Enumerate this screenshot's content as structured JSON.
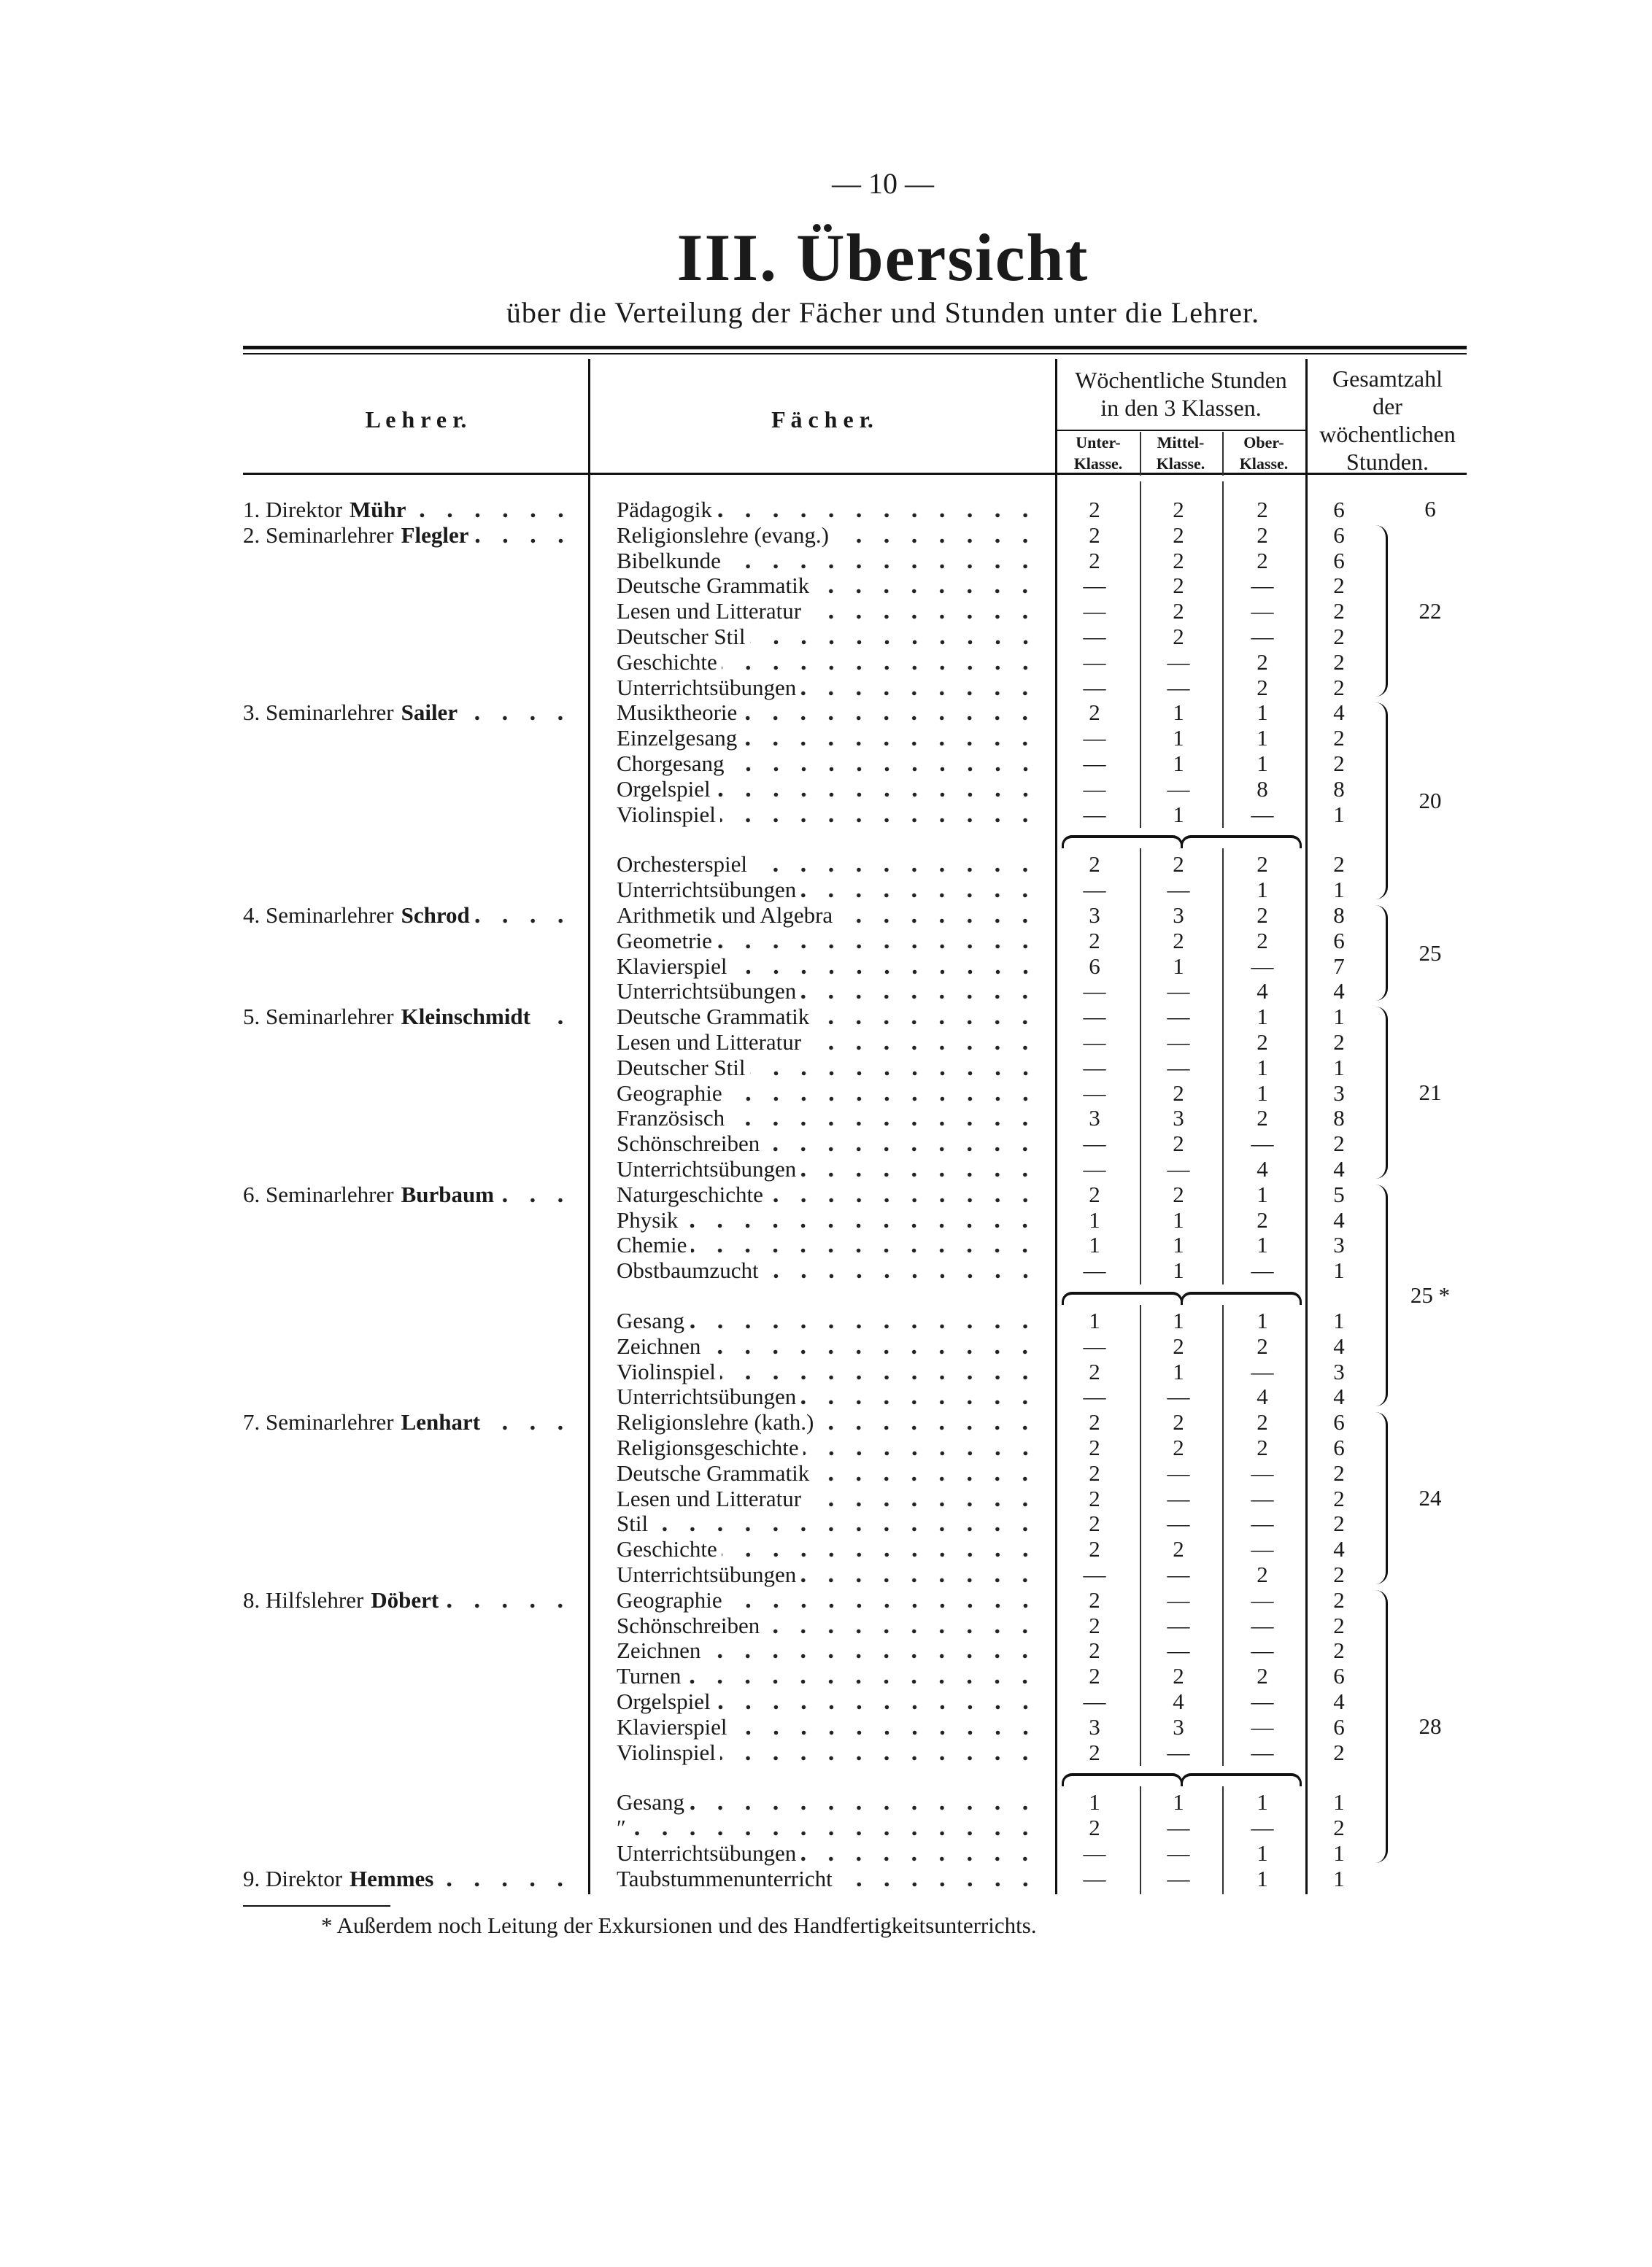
{
  "page_number": "— 10 —",
  "title": "III. Übersicht",
  "subtitle": "über die Verteilung der Fächer und Stunden unter die Lehrer.",
  "headers": {
    "teacher": "L e h r e r.",
    "subject": "F ä c h e r.",
    "weekly_line1": "Wöchentliche Stunden",
    "weekly_line2": "in den 3 Klassen.",
    "class_lower": [
      "Unter-",
      "Klasse."
    ],
    "class_middle": [
      "Mittel-",
      "Klasse."
    ],
    "class_upper": [
      "Ober-",
      "Klasse."
    ],
    "total_lines": [
      "Gesamtzahl",
      "der",
      "wöchentlichen",
      "Stunden."
    ]
  },
  "teachers": [
    {
      "label": "1. Direktor",
      "name": "Mühr",
      "total": "6",
      "first_row": 0,
      "last_row": 0
    },
    {
      "label": "2. Seminarlehrer",
      "name": "Flegler",
      "total": "22",
      "first_row": 1,
      "last_row": 7
    },
    {
      "label": "3. Seminarlehrer",
      "name": "Sailer",
      "total": "20",
      "first_row": 8,
      "last_row": 14
    },
    {
      "label": "4. Seminarlehrer",
      "name": "Schrod",
      "total": "25",
      "first_row": 15,
      "last_row": 18
    },
    {
      "label": "5. Seminarlehrer",
      "name": "Kleinschmidt",
      "total": "21",
      "first_row": 19,
      "last_row": 25
    },
    {
      "label": "6. Seminarlehrer",
      "name": "Burbaum",
      "total": "25 *",
      "first_row": 26,
      "last_row": 33
    },
    {
      "label": "7. Seminarlehrer",
      "name": "Lenhart",
      "total": "24",
      "first_row": 34,
      "last_row": 40
    },
    {
      "label": "8. Hilfslehrer",
      "name": "Döbert",
      "total": "28",
      "first_row": 41,
      "last_row": 50
    },
    {
      "label": "9. Direktor",
      "name": "Hemmes",
      "total": "",
      "first_row": 51,
      "last_row": 51
    }
  ],
  "rows": [
    {
      "subject": "Pädagogik",
      "lower": "2",
      "middle": "2",
      "upper": "2",
      "total": "6"
    },
    {
      "subject": "Religionslehre (evang.)",
      "lower": "2",
      "middle": "2",
      "upper": "2",
      "total": "6"
    },
    {
      "subject": "Bibelkunde",
      "lower": "2",
      "middle": "2",
      "upper": "2",
      "total": "6"
    },
    {
      "subject": "Deutsche Grammatik",
      "lower": "—",
      "middle": "2",
      "upper": "—",
      "total": "2"
    },
    {
      "subject": "Lesen und Litteratur",
      "lower": "—",
      "middle": "2",
      "upper": "—",
      "total": "2"
    },
    {
      "subject": "Deutscher Stil",
      "lower": "—",
      "middle": "2",
      "upper": "—",
      "total": "2"
    },
    {
      "subject": "Geschichte",
      "lower": "—",
      "middle": "—",
      "upper": "2",
      "total": "2"
    },
    {
      "subject": "Unterrichtsübungen",
      "lower": "—",
      "middle": "—",
      "upper": "2",
      "total": "2"
    },
    {
      "subject": "Musiktheorie",
      "lower": "2",
      "middle": "1",
      "upper": "1",
      "total": "4"
    },
    {
      "subject": "Einzelgesang",
      "lower": "—",
      "middle": "1",
      "upper": "1",
      "total": "2"
    },
    {
      "subject": "Chorgesang",
      "lower": "—",
      "middle": "1",
      "upper": "1",
      "total": "2"
    },
    {
      "subject": "Orgelspiel",
      "lower": "—",
      "middle": "—",
      "upper": "8",
      "total": "8"
    },
    {
      "subject": "Violinspiel",
      "lower": "—",
      "middle": "1",
      "upper": "—",
      "total": "1"
    },
    {
      "subject": "Orchesterspiel",
      "lower": "2",
      "middle": "2",
      "upper": "2",
      "total": "2",
      "after_brace": true
    },
    {
      "subject": "Unterrichtsübungen",
      "lower": "—",
      "middle": "—",
      "upper": "1",
      "total": "1"
    },
    {
      "subject": "Arithmetik und Algebra",
      "lower": "3",
      "middle": "3",
      "upper": "2",
      "total": "8"
    },
    {
      "subject": "Geometrie",
      "lower": "2",
      "middle": "2",
      "upper": "2",
      "total": "6"
    },
    {
      "subject": "Klavierspiel",
      "lower": "6",
      "middle": "1",
      "upper": "—",
      "total": "7"
    },
    {
      "subject": "Unterrichtsübungen",
      "lower": "—",
      "middle": "—",
      "upper": "4",
      "total": "4"
    },
    {
      "subject": "Deutsche Grammatik",
      "lower": "—",
      "middle": "—",
      "upper": "1",
      "total": "1"
    },
    {
      "subject": "Lesen und Litteratur",
      "lower": "—",
      "middle": "—",
      "upper": "2",
      "total": "2"
    },
    {
      "subject": "Deutscher Stil",
      "lower": "—",
      "middle": "—",
      "upper": "1",
      "total": "1"
    },
    {
      "subject": "Geographie",
      "lower": "—",
      "middle": "2",
      "upper": "1",
      "total": "3"
    },
    {
      "subject": "Französisch",
      "lower": "3",
      "middle": "3",
      "upper": "2",
      "total": "8"
    },
    {
      "subject": "Schönschreiben",
      "lower": "—",
      "middle": "2",
      "upper": "—",
      "total": "2"
    },
    {
      "subject": "Unterrichtsübungen",
      "lower": "—",
      "middle": "—",
      "upper": "4",
      "total": "4"
    },
    {
      "subject": "Naturgeschichte",
      "lower": "2",
      "middle": "2",
      "upper": "1",
      "total": "5"
    },
    {
      "subject": "Physik",
      "lower": "1",
      "middle": "1",
      "upper": "2",
      "total": "4"
    },
    {
      "subject": "Chemie",
      "lower": "1",
      "middle": "1",
      "upper": "1",
      "total": "3"
    },
    {
      "subject": "Obstbaumzucht",
      "lower": "—",
      "middle": "1",
      "upper": "—",
      "total": "1"
    },
    {
      "subject": "Gesang",
      "lower": "1",
      "middle": "1",
      "upper": "1",
      "total": "1",
      "after_brace": true
    },
    {
      "subject": "Zeichnen",
      "lower": "—",
      "middle": "2",
      "upper": "2",
      "total": "4"
    },
    {
      "subject": "Violinspiel",
      "lower": "2",
      "middle": "1",
      "upper": "—",
      "total": "3"
    },
    {
      "subject": "Unterrichtsübungen",
      "lower": "—",
      "middle": "—",
      "upper": "4",
      "total": "4"
    },
    {
      "subject": "Religionslehre (kath.)",
      "lower": "2",
      "middle": "2",
      "upper": "2",
      "total": "6"
    },
    {
      "subject": "Religionsgeschichte",
      "lower": "2",
      "middle": "2",
      "upper": "2",
      "total": "6"
    },
    {
      "subject": "Deutsche Grammatik",
      "lower": "2",
      "middle": "—",
      "upper": "—",
      "total": "2"
    },
    {
      "subject": "Lesen und Litteratur",
      "lower": "2",
      "middle": "—",
      "upper": "—",
      "total": "2"
    },
    {
      "subject": "Stil",
      "lower": "2",
      "middle": "—",
      "upper": "—",
      "total": "2"
    },
    {
      "subject": "Geschichte",
      "lower": "2",
      "middle": "2",
      "upper": "—",
      "total": "4"
    },
    {
      "subject": "Unterrichtsübungen",
      "lower": "—",
      "middle": "—",
      "upper": "2",
      "total": "2"
    },
    {
      "subject": "Geographie",
      "lower": "2",
      "middle": "—",
      "upper": "—",
      "total": "2"
    },
    {
      "subject": "Schönschreiben",
      "lower": "2",
      "middle": "—",
      "upper": "—",
      "total": "2"
    },
    {
      "subject": "Zeichnen",
      "lower": "2",
      "middle": "—",
      "upper": "—",
      "total": "2"
    },
    {
      "subject": "Turnen",
      "lower": "2",
      "middle": "2",
      "upper": "2",
      "total": "6"
    },
    {
      "subject": "Orgelspiel",
      "lower": "—",
      "middle": "4",
      "upper": "—",
      "total": "4"
    },
    {
      "subject": "Klavierspiel",
      "lower": "3",
      "middle": "3",
      "upper": "—",
      "total": "6"
    },
    {
      "subject": "Violinspiel",
      "lower": "2",
      "middle": "—",
      "upper": "—",
      "total": "2"
    },
    {
      "subject": "Gesang",
      "lower": "1",
      "middle": "1",
      "upper": "1",
      "total": "1",
      "after_brace": true
    },
    {
      "subject": "″",
      "lower": "2",
      "middle": "—",
      "upper": "—",
      "total": "2"
    },
    {
      "subject": "Unterrichtsübungen",
      "lower": "—",
      "middle": "—",
      "upper": "1",
      "total": "1"
    },
    {
      "subject": "Taubstummenunterricht",
      "lower": "—",
      "middle": "—",
      "upper": "1",
      "total": "1"
    }
  ],
  "footnote": "* Außerdem noch Leitung der Exkursionen und des Handfertigkeitsunterrichts."
}
